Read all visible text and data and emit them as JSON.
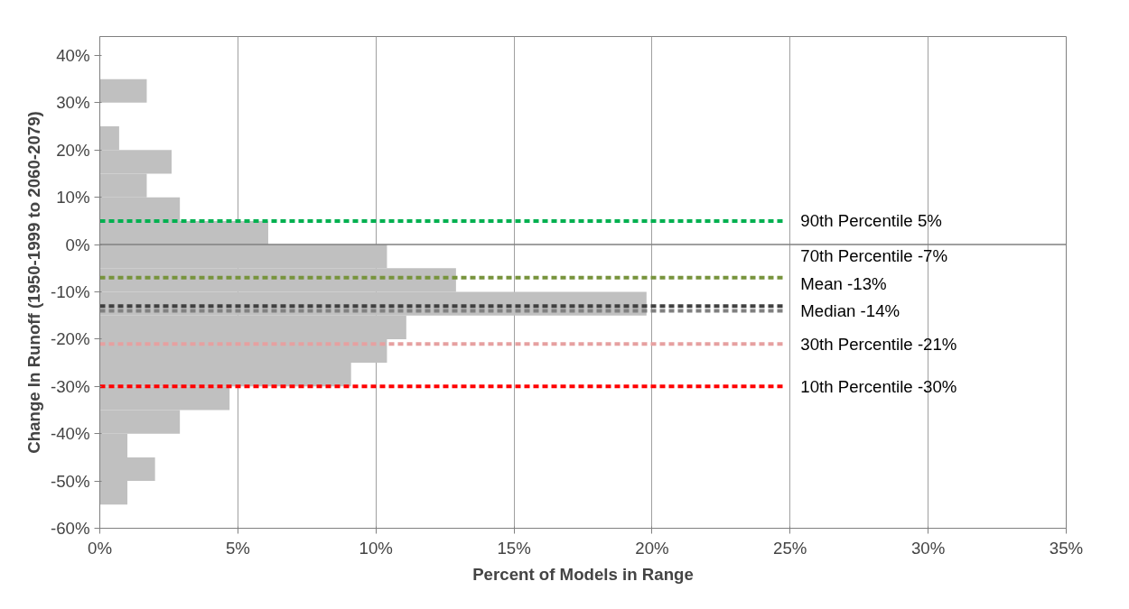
{
  "chart_data": {
    "type": "histogram",
    "orientation": "horizontal",
    "xlabel": "Percent of Models in Range",
    "ylabel": "Change In Runoff (1950-1999 to 2060-2079)",
    "bins": [
      -55,
      -50,
      -45,
      -40,
      -35,
      -30,
      -25,
      -20,
      -15,
      -10,
      -5,
      0,
      5,
      10,
      15,
      20,
      25,
      30,
      35
    ],
    "values": [
      1.0,
      2.0,
      1.0,
      2.9,
      4.7,
      9.1,
      10.4,
      11.1,
      19.8,
      12.9,
      10.4,
      6.1,
      2.9,
      1.7,
      2.6,
      0.7,
      0,
      1.7
    ],
    "color": "#c0c0c0",
    "xlim": [
      0,
      35
    ],
    "ylim": [
      -60,
      44
    ],
    "xticks": [
      {
        "value": 0,
        "label": "0%"
      },
      {
        "value": 5,
        "label": "5%"
      },
      {
        "value": 10,
        "label": "10%"
      },
      {
        "value": 15,
        "label": "15%"
      },
      {
        "value": 20,
        "label": "20%"
      },
      {
        "value": 25,
        "label": "25%"
      },
      {
        "value": 30,
        "label": "30%"
      },
      {
        "value": 35,
        "label": "35%"
      }
    ],
    "yticks": [
      {
        "value": -60,
        "label": "-60%"
      },
      {
        "value": -50,
        "label": "-50%"
      },
      {
        "value": -40,
        "label": "-40%"
      },
      {
        "value": -30,
        "label": "-30%"
      },
      {
        "value": -20,
        "label": "-20%"
      },
      {
        "value": -10,
        "label": "-10%"
      },
      {
        "value": 0,
        "label": "0%"
      },
      {
        "value": 10,
        "label": "10%"
      },
      {
        "value": 20,
        "label": "20%"
      },
      {
        "value": 30,
        "label": "30%"
      },
      {
        "value": 40,
        "label": "40%"
      }
    ],
    "grid": "x",
    "ref_lines": [
      {
        "axis": "y",
        "value": 0,
        "color": "#808080",
        "line_style": "solid"
      },
      {
        "axis": "y",
        "value": 5,
        "label": "90th Percentile 5%",
        "color": "#00b050",
        "line_style": "dashed"
      },
      {
        "axis": "y",
        "value": -7,
        "label": "70th Percentile -7%",
        "color": "#77933c",
        "line_style": "dashed"
      },
      {
        "axis": "y",
        "value": -13,
        "label": "Mean -13%",
        "color": "#404040",
        "line_style": "dashed"
      },
      {
        "axis": "y",
        "value": -14,
        "label": "Median -14%",
        "color": "#808080",
        "line_style": "dashed"
      },
      {
        "axis": "y",
        "value": -21,
        "label": "30th Percentile -21%",
        "color": "#e6a0a0",
        "line_style": "dashed"
      },
      {
        "axis": "y",
        "value": -30,
        "label": "10th Percentile -30%",
        "color": "#ff0000",
        "line_style": "dashed"
      }
    ]
  }
}
